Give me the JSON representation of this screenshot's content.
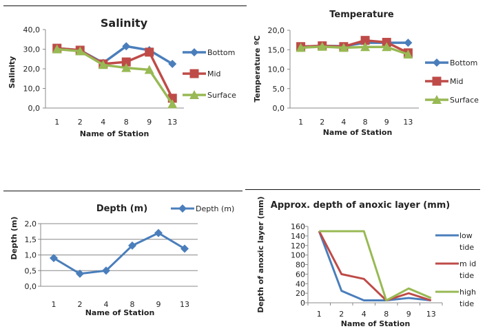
{
  "chart_data": [
    {
      "id": "salinity",
      "type": "line",
      "title": "Salinity",
      "xlabel": "Name of Station",
      "ylabel": "Salinity",
      "categories": [
        "1",
        "2",
        "4",
        "8",
        "9",
        "13"
      ],
      "ylim": [
        0,
        40
      ],
      "yticks": [
        "0,0",
        "10,0",
        "20,0",
        "30,0",
        "40,0"
      ],
      "ytick_values": [
        0,
        10,
        20,
        30,
        40
      ],
      "grid": false,
      "legend_position": "right",
      "series": [
        {
          "name": "Bottom",
          "color": "#4a7ebb",
          "marker": "diamond",
          "values": [
            30.5,
            29.5,
            23,
            31.5,
            29.5,
            22.5
          ]
        },
        {
          "name": "Mid",
          "color": "#be4b48",
          "marker": "square",
          "values": [
            30.5,
            29.5,
            22.5,
            23.5,
            28.5,
            5
          ]
        },
        {
          "name": "Surface",
          "color": "#98b954",
          "marker": "triangle",
          "values": [
            30,
            29,
            22,
            20.5,
            19.5,
            2
          ]
        }
      ]
    },
    {
      "id": "temperature",
      "type": "line",
      "title": "Temperature",
      "xlabel": "Name of Station",
      "ylabel": "Temperature ºC",
      "categories": [
        "1",
        "2",
        "4",
        "8",
        "9",
        "13"
      ],
      "ylim": [
        0,
        20
      ],
      "yticks": [
        "0,0",
        "5,0",
        "10,0",
        "15,0",
        "20,0"
      ],
      "ytick_values": [
        0,
        5,
        10,
        15,
        20
      ],
      "grid": false,
      "legend_position": "right",
      "series": [
        {
          "name": "Bottom",
          "color": "#4a7ebb",
          "marker": "diamond",
          "values": [
            15.8,
            16,
            15.9,
            16.8,
            16.8,
            16.8
          ]
        },
        {
          "name": "Mid",
          "color": "#be4b48",
          "marker": "square",
          "values": [
            15.8,
            16,
            15.8,
            17.4,
            16.9,
            14.2
          ]
        },
        {
          "name": "Surface",
          "color": "#98b954",
          "marker": "triangle",
          "values": [
            15.5,
            15.8,
            15.5,
            15.7,
            15.7,
            13.8
          ]
        }
      ]
    },
    {
      "id": "depth",
      "type": "line",
      "title": "Depth (m)",
      "xlabel": "Name of Station",
      "ylabel": "Depth  (m)",
      "categories": [
        "1",
        "2",
        "4",
        "8",
        "9",
        "13"
      ],
      "ylim": [
        0,
        2
      ],
      "yticks": [
        "0,0",
        "0,5",
        "1,0",
        "1,5",
        "2,0"
      ],
      "ytick_values": [
        0,
        0.5,
        1,
        1.5,
        2
      ],
      "grid": true,
      "legend_position": "top-right",
      "series": [
        {
          "name": "Depth (m)",
          "color": "#4a7ebb",
          "marker": "diamond",
          "values": [
            0.9,
            0.4,
            0.5,
            1.3,
            1.7,
            1.2
          ]
        }
      ]
    },
    {
      "id": "anoxic",
      "type": "line",
      "title": "Approx. depth of anoxic layer (mm)",
      "xlabel": "Name of Station",
      "ylabel": "Depth of anoxic  layer (mm)",
      "categories": [
        "1",
        "2",
        "4",
        "8",
        "9",
        "13"
      ],
      "ylim": [
        0,
        160
      ],
      "yticks": [
        "0",
        "20",
        "40",
        "60",
        "80",
        "100",
        "120",
        "140",
        "160"
      ],
      "ytick_values": [
        0,
        20,
        40,
        60,
        80,
        100,
        120,
        140,
        160
      ],
      "grid": false,
      "legend_position": "right",
      "series": [
        {
          "name": "low tide",
          "name_lines": [
            "low",
            "tide"
          ],
          "color": "#4a7ebb",
          "marker": "none",
          "values": [
            150,
            25,
            5,
            5,
            10,
            5
          ]
        },
        {
          "name": "mid tide",
          "name_lines": [
            "m id",
            "tide"
          ],
          "color": "#be4b48",
          "marker": "none",
          "values": [
            150,
            60,
            50,
            5,
            20,
            5
          ]
        },
        {
          "name": "high tide",
          "name_lines": [
            "high",
            "tide"
          ],
          "color": "#98b954",
          "marker": "none",
          "values": [
            150,
            150,
            150,
            5,
            30,
            10
          ]
        }
      ]
    }
  ]
}
